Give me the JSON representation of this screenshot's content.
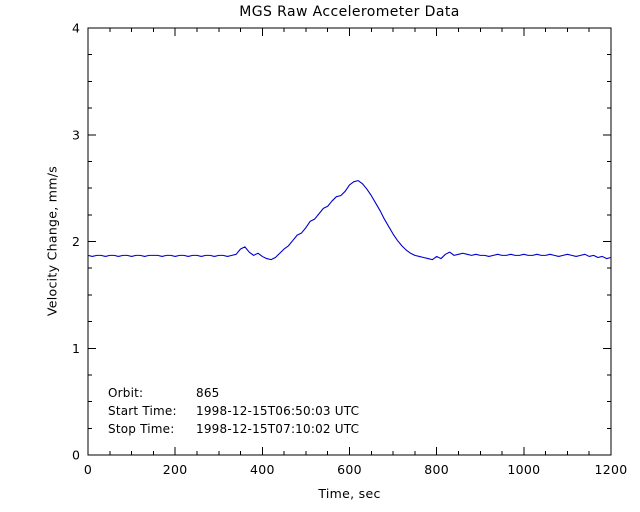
{
  "chart_data": {
    "type": "line",
    "title": "MGS Raw Accelerometer Data",
    "xlabel": "Time, sec",
    "ylabel": "Velocity Change, mm/s",
    "xlim": [
      0,
      1200
    ],
    "ylim": [
      0,
      4
    ],
    "xticks": [
      0,
      200,
      400,
      600,
      800,
      1000,
      1200
    ],
    "yticks": [
      0,
      1,
      2,
      3,
      4
    ],
    "x_minor_step": 50,
    "y_minor_step": 0.25,
    "grid": false,
    "legend": "none",
    "line_color": "#0000cd",
    "axis_color": "#000000",
    "background_color": "#ffffff",
    "series_name": "velocity_change",
    "x_start": 0,
    "x_step": 10,
    "values": [
      1.87,
      1.86,
      1.87,
      1.87,
      1.86,
      1.87,
      1.87,
      1.86,
      1.87,
      1.87,
      1.86,
      1.87,
      1.87,
      1.86,
      1.87,
      1.87,
      1.87,
      1.86,
      1.87,
      1.87,
      1.86,
      1.87,
      1.87,
      1.86,
      1.87,
      1.87,
      1.86,
      1.87,
      1.87,
      1.86,
      1.87,
      1.87,
      1.86,
      1.87,
      1.88,
      1.93,
      1.95,
      1.9,
      1.87,
      1.89,
      1.86,
      1.84,
      1.83,
      1.85,
      1.89,
      1.93,
      1.96,
      2.01,
      2.06,
      2.08,
      2.13,
      2.19,
      2.21,
      2.26,
      2.31,
      2.33,
      2.38,
      2.42,
      2.43,
      2.47,
      2.53,
      2.56,
      2.57,
      2.54,
      2.49,
      2.43,
      2.36,
      2.29,
      2.21,
      2.14,
      2.07,
      2.01,
      1.96,
      1.92,
      1.89,
      1.87,
      1.86,
      1.85,
      1.84,
      1.83,
      1.86,
      1.84,
      1.88,
      1.9,
      1.87,
      1.88,
      1.89,
      1.88,
      1.87,
      1.88,
      1.87,
      1.87,
      1.86,
      1.87,
      1.88,
      1.87,
      1.87,
      1.88,
      1.87,
      1.87,
      1.88,
      1.87,
      1.87,
      1.88,
      1.87,
      1.87,
      1.88,
      1.87,
      1.86,
      1.87,
      1.88,
      1.87,
      1.86,
      1.87,
      1.88,
      1.86,
      1.87,
      1.85,
      1.86,
      1.84,
      1.85
    ],
    "annotations": [
      {
        "label": "Orbit:",
        "value": "865"
      },
      {
        "label": "Start Time:",
        "value": "1998-12-15T06:50:03 UTC"
      },
      {
        "label": "Stop Time:",
        "value": "1998-12-15T07:10:02 UTC"
      }
    ]
  }
}
